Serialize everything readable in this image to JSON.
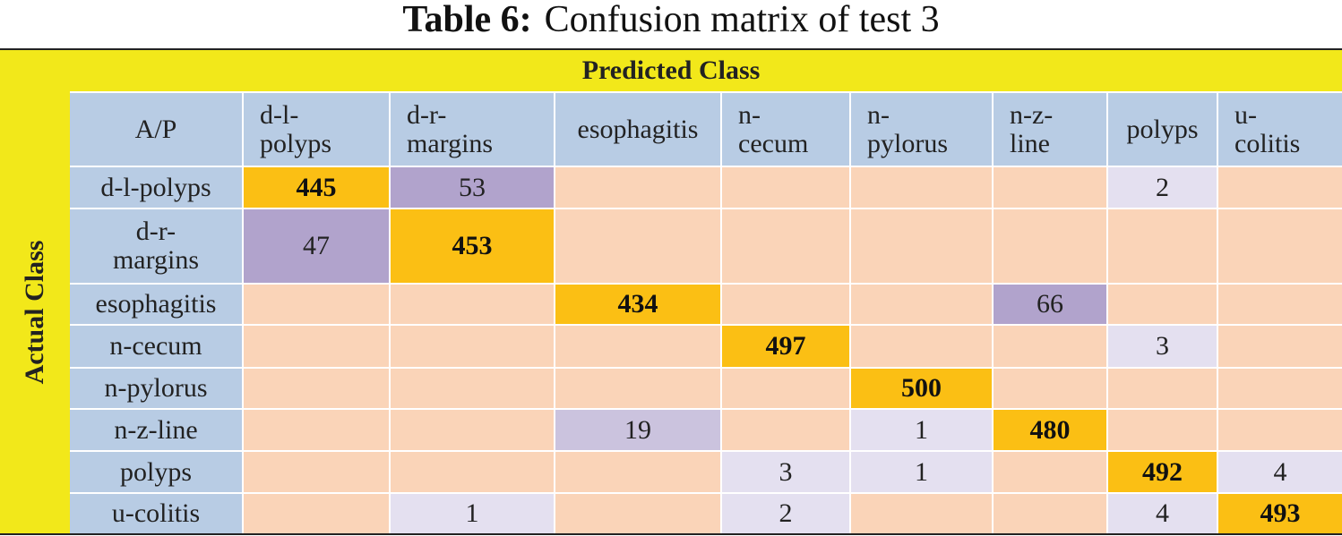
{
  "caption": {
    "label": "Table 6:",
    "text": "Confusion matrix of test 3"
  },
  "table": {
    "predicted_label": "Predicted Class",
    "actual_label": "Actual Class",
    "corner": "A/P",
    "columns": [
      "d-l-\npolyps",
      "d-r-\nmargins",
      "esophagitis",
      "n-\ncecum",
      "n-\npylorus",
      "n-z-\nline",
      "polyps",
      "u-\ncolitis"
    ],
    "rows": [
      {
        "label": "d-l-polyps",
        "cells": [
          445,
          53,
          null,
          null,
          null,
          null,
          2,
          null
        ]
      },
      {
        "label": "d-r-\nmargins",
        "cells": [
          47,
          453,
          null,
          null,
          null,
          null,
          null,
          null
        ]
      },
      {
        "label": "esophagitis",
        "cells": [
          null,
          null,
          434,
          null,
          null,
          66,
          null,
          null
        ]
      },
      {
        "label": "n-cecum",
        "cells": [
          null,
          null,
          null,
          497,
          null,
          null,
          3,
          null
        ]
      },
      {
        "label": "n-pylorus",
        "cells": [
          null,
          null,
          null,
          null,
          500,
          null,
          null,
          null
        ]
      },
      {
        "label": "n-z-line",
        "cells": [
          null,
          null,
          19,
          null,
          1,
          480,
          null,
          null
        ]
      },
      {
        "label": "polyps",
        "cells": [
          null,
          null,
          null,
          3,
          1,
          null,
          492,
          4
        ]
      },
      {
        "label": "u-colitis",
        "cells": [
          null,
          1,
          null,
          2,
          null,
          null,
          4,
          493
        ]
      }
    ]
  }
}
